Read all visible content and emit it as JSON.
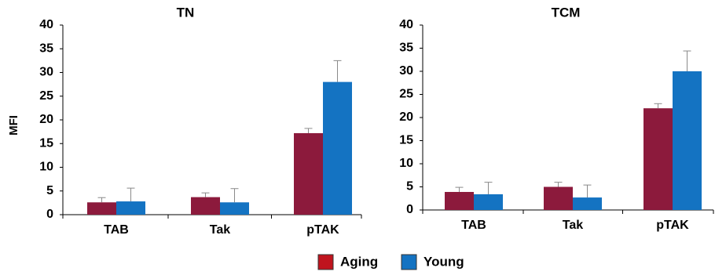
{
  "chart_data": [
    {
      "type": "bar",
      "title": "TN",
      "ylabel": "MFI",
      "xlabel": "",
      "ylim": [
        0,
        40
      ],
      "yticks": [
        0,
        5,
        10,
        15,
        20,
        25,
        30,
        35,
        40
      ],
      "categories": [
        "TAB",
        "Tak",
        "pTAK"
      ],
      "series": [
        {
          "name": "Aging",
          "values": [
            2.6,
            3.7,
            17.2
          ],
          "errors": [
            1.0,
            0.9,
            1.0
          ]
        },
        {
          "name": "Young",
          "values": [
            2.8,
            2.6,
            28.0
          ],
          "errors": [
            2.8,
            2.9,
            4.5
          ]
        }
      ]
    },
    {
      "type": "bar",
      "title": "TCM",
      "ylabel": "",
      "xlabel": "",
      "ylim": [
        0,
        40
      ],
      "yticks": [
        0,
        5,
        10,
        15,
        20,
        25,
        30,
        35,
        40
      ],
      "categories": [
        "TAB",
        "Tak",
        "pTAK"
      ],
      "series": [
        {
          "name": "Aging",
          "values": [
            3.9,
            5.0,
            22.0
          ],
          "errors": [
            1.0,
            1.0,
            1.0
          ]
        },
        {
          "name": "Young",
          "values": [
            3.4,
            2.7,
            30.0
          ],
          "errors": [
            2.6,
            2.7,
            4.4
          ]
        }
      ]
    }
  ],
  "legend": {
    "items": [
      {
        "label": "Aging",
        "color": "#8c1a3c",
        "swatch": "#c0141e"
      },
      {
        "label": "Young",
        "color": "#1473c2",
        "swatch": "#1473c2"
      }
    ]
  },
  "colors": {
    "aging": "#8c1a3c",
    "young": "#1473c2",
    "error": "#8a8a8a",
    "axis": "#000000"
  }
}
